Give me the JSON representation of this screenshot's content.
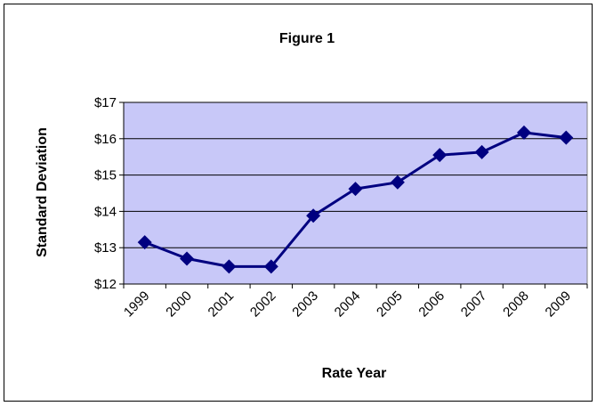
{
  "chart_data": {
    "type": "line",
    "title": "Figure 1",
    "xlabel": "Rate Year",
    "ylabel": "Standard Deviation",
    "categories": [
      "1999",
      "2000",
      "2001",
      "2002",
      "2003",
      "2004",
      "2005",
      "2006",
      "2007",
      "2008",
      "2009"
    ],
    "series": [
      {
        "values": [
          13.15,
          12.7,
          12.48,
          12.48,
          13.88,
          14.62,
          14.8,
          15.55,
          15.63,
          16.17,
          16.03
        ]
      }
    ],
    "ylim": [
      12,
      17
    ],
    "yticks": [
      "$12",
      "$13",
      "$14",
      "$15",
      "$16",
      "$17"
    ],
    "grid": "horizontal",
    "legend": "none",
    "colors": {
      "plot_background": "#c8c8f8",
      "line": "#000080",
      "gridline": "#000000"
    }
  }
}
